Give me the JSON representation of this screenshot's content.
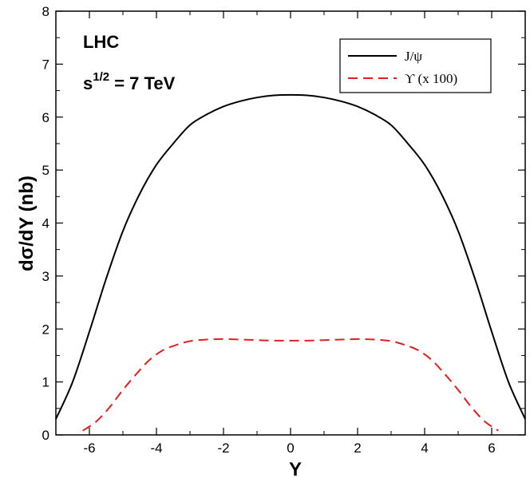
{
  "chart_data": {
    "type": "line",
    "xlabel": "Y",
    "ylabel": "dσ/dY (nb)",
    "xlim": [
      -7,
      7
    ],
    "ylim": [
      0,
      8
    ],
    "x_ticks": [
      -6,
      -4,
      -2,
      0,
      2,
      4,
      6
    ],
    "x_tick_labels": [
      "-6",
      "-4",
      "-2",
      "0",
      "2",
      "4",
      "6"
    ],
    "y_ticks": [
      0,
      1,
      2,
      3,
      4,
      5,
      6,
      7,
      8
    ],
    "y_tick_labels": [
      "0",
      "1",
      "2",
      "3",
      "4",
      "5",
      "6",
      "7",
      "8"
    ],
    "annotations": [
      "LHC",
      "s",
      "1/2",
      " = 7 TeV"
    ],
    "legend_position": "top-right",
    "series": [
      {
        "name": "J/ψ",
        "color": "#000000",
        "style": "solid",
        "x": [
          -7,
          -6.5,
          -6,
          -5.5,
          -5,
          -4.5,
          -4,
          -3.5,
          -3,
          -2.5,
          -2,
          -1.5,
          -1,
          -0.5,
          0,
          0.5,
          1,
          1.5,
          2,
          2.5,
          3,
          3.5,
          4,
          4.5,
          5,
          5.5,
          6,
          6.5,
          7
        ],
        "y": [
          0.3,
          1.0,
          1.95,
          2.95,
          3.85,
          4.55,
          5.1,
          5.5,
          5.85,
          6.05,
          6.2,
          6.3,
          6.37,
          6.41,
          6.42,
          6.41,
          6.37,
          6.3,
          6.2,
          6.05,
          5.85,
          5.5,
          5.1,
          4.55,
          3.85,
          2.95,
          1.95,
          1.0,
          0.3
        ]
      },
      {
        "name": "ϒ (x 100)",
        "color": "#e02020",
        "style": "dashed",
        "x": [
          -6.2,
          -5.8,
          -5.4,
          -5,
          -4.6,
          -4.2,
          -3.8,
          -3.4,
          -3,
          -2.5,
          -2,
          -1.5,
          -1,
          -0.5,
          0,
          0.5,
          1,
          1.5,
          2,
          2.5,
          3,
          3.4,
          3.8,
          4.2,
          4.6,
          5,
          5.4,
          5.8,
          6.2
        ],
        "y": [
          0.08,
          0.25,
          0.52,
          0.85,
          1.15,
          1.42,
          1.6,
          1.7,
          1.77,
          1.8,
          1.81,
          1.8,
          1.79,
          1.78,
          1.78,
          1.78,
          1.79,
          1.8,
          1.81,
          1.8,
          1.77,
          1.7,
          1.6,
          1.42,
          1.15,
          0.85,
          0.52,
          0.25,
          0.08
        ]
      }
    ]
  }
}
